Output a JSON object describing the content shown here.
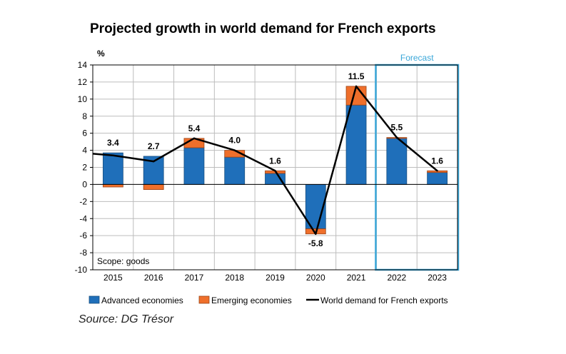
{
  "chart_data": {
    "type": "bar",
    "title": "Projected growth in world demand for French exports",
    "ylabel": "%",
    "ylim": [
      -10,
      14
    ],
    "yticks": [
      -10,
      -8,
      -6,
      -4,
      -2,
      0,
      2,
      4,
      6,
      8,
      10,
      12,
      14
    ],
    "categories": [
      "2015",
      "2016",
      "2017",
      "2018",
      "2019",
      "2020",
      "2021",
      "2022",
      "2023"
    ],
    "series": [
      {
        "name": "Advanced economies",
        "type": "stacked-bar",
        "color": "#1f6fba",
        "values": [
          3.7,
          3.3,
          4.3,
          3.2,
          1.3,
          -5.2,
          9.3,
          5.4,
          1.4
        ]
      },
      {
        "name": "Emerging economies",
        "type": "stacked-bar",
        "color": "#ef6f2b",
        "values": [
          -0.3,
          -0.6,
          1.1,
          0.8,
          0.3,
          -0.6,
          2.2,
          0.1,
          0.2
        ]
      },
      {
        "name": "World demand for French exports",
        "type": "line",
        "color": "#000000",
        "values": [
          3.4,
          2.7,
          5.4,
          4.0,
          1.6,
          -5.8,
          11.5,
          5.5,
          1.6
        ],
        "line_start_value": 3.6
      }
    ],
    "data_labels": [
      "3.4",
      "2.7",
      "5.4",
      "4.0",
      "1.6",
      "-5.8",
      "11.5",
      "5.5",
      "1.6"
    ],
    "forecast": {
      "label": "Forecast",
      "from": "2022",
      "to": "2023",
      "color": "#3aa7d9"
    },
    "annotation": "Scope: goods",
    "grid": true,
    "legend_position": "bottom"
  },
  "source": "Source: DG Trésor"
}
